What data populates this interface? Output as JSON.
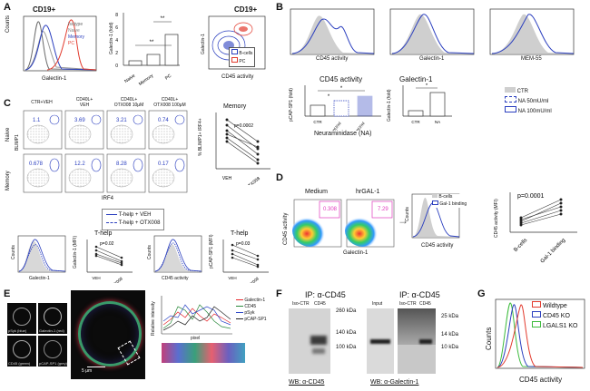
{
  "panels": {
    "A": {
      "label": "A",
      "hist_title": "CD19+",
      "hist_ylabel": "Counts",
      "hist_xlabel": "Galectin-1",
      "legend": [
        "Isotype",
        "Naive",
        "Memory",
        "PC"
      ],
      "bar_ylabel": "Galectin-1 (fold)",
      "bar_categories": [
        "Naive",
        "Memory",
        "PC"
      ],
      "bar_yticks": [
        "0",
        "2",
        "4",
        "6",
        "8"
      ],
      "sig": [
        "**",
        "**"
      ],
      "contour_title": "CD19+",
      "contour_ylabel": "Galectin-1",
      "contour_xlabel": "CD45 activity",
      "contour_legend": [
        "B-cells",
        "PC"
      ]
    },
    "B": {
      "label": "B",
      "hist_xlabels": [
        "CD45 activity",
        "Galectin-1",
        "MEM-55"
      ],
      "hist_ylabel": "Counts",
      "bar1_title": "CD45 activity",
      "bar1_ylabel": "pCAP-SP1 (fold)",
      "bar1_categories": [
        "CTR",
        "50 mU/ml",
        "100 mU/ml"
      ],
      "bar1_xlabel": "Neuraminidase (NA)",
      "bar2_title": "Galectin-1",
      "bar2_ylabel": "Galectin-1 (fold)",
      "bar2_categories": [
        "CTR",
        "NA"
      ],
      "legend": [
        "CTR",
        "NA 50mU/ml",
        "NA 100mU/ml"
      ],
      "sig": [
        "*",
        "*",
        "*"
      ]
    },
    "C": {
      "label": "C",
      "col_titles": [
        "CTR+VEH",
        "CD40L+ VEH",
        "CD40L+ OTX008 10μM",
        "CD40L+ OTX008 100μM"
      ],
      "row_titles": [
        "Naive",
        "Memory"
      ],
      "naive_values": [
        "1.1",
        "3.69",
        "3.21",
        "0.74"
      ],
      "memory_values": [
        "0.678",
        "12.2",
        "8.28",
        "0.17"
      ],
      "ylabel": "BLIMP1",
      "xlabel": "IRF4",
      "memory_chart_title": "Memory",
      "memory_chart_ylabel": "% BLIMP1+ IRF4+",
      "memory_p": "p=0.0002",
      "memory_x": [
        "VEH",
        "OTX008"
      ],
      "legend": [
        "T-help + VEH",
        "T-help + OTX008"
      ],
      "thelp_title1": "T-help",
      "thelp_p1": "p=0.02",
      "thelp_ylabel1": "Galectin-1 (MFI)",
      "thelp_title2": "T-help",
      "thelp_p2": "p=0.03",
      "thelp_ylabel2": "pCAP-SP1 (MFI)",
      "hist_xlabel1": "Galectin-1",
      "hist_xlabel2": "CD45 activity",
      "hist_ylabel": "Counts"
    },
    "D": {
      "label": "D",
      "plot_titles": [
        "Medium",
        "hrGAL-1"
      ],
      "values": [
        "0.308",
        "7.29"
      ],
      "ylabel": "CD45 activity",
      "xlabel": "Galectin-1",
      "legend": [
        "B-cells",
        "Gal-1 binding"
      ],
      "hist_xlabel": "CD45 activity",
      "hist_ylabel": "Counts",
      "chart_p": "p=0.0001",
      "chart_ylabel": "CD45 activity (MFI)",
      "chart_x": [
        "B-cells",
        "Gal-1 binding"
      ]
    },
    "E": {
      "label": "E",
      "tiles": [
        "pSyk (blue)",
        "Galectin-1 (red)",
        "CD45 (green)",
        "pCAP-SP1 (grey)"
      ],
      "scale": "5 μm",
      "profile_ylabel": "Relative intensity",
      "profile_xlabel": "pixel",
      "legend": [
        "Galectin-1",
        "CD45",
        "pSyk",
        "pCAP-SP1"
      ],
      "colors": {
        "Galectin-1": "#e8262b",
        "CD45": "#2a8a3c",
        "pSyk": "#2e48c8",
        "pCAP-SP1": "#222222"
      }
    },
    "F": {
      "label": "F",
      "ip_title1": "IP: α-CD45",
      "ip_title2": "IP: α-CD45",
      "lanes1": [
        "Iso-CTR",
        "CD45"
      ],
      "lanes2": [
        "Input",
        "Iso-CTR",
        "CD45"
      ],
      "markers1": [
        "260 kDa",
        "140 kDa",
        "100 kDa"
      ],
      "markers2": [
        "25 kDa",
        "14 kDa",
        "10 kDa"
      ],
      "wb1": "WB: α-CD45",
      "wb2": "WB: α-Galectin-1"
    },
    "G": {
      "label": "G",
      "ylabel": "Counts",
      "xlabel": "CD45 activity",
      "legend": [
        "Wildtype",
        "CD45 KO",
        "LGALS1 KO"
      ],
      "colors": [
        "#e23b2e",
        "#2b3fbf",
        "#3dbb3d"
      ]
    }
  }
}
